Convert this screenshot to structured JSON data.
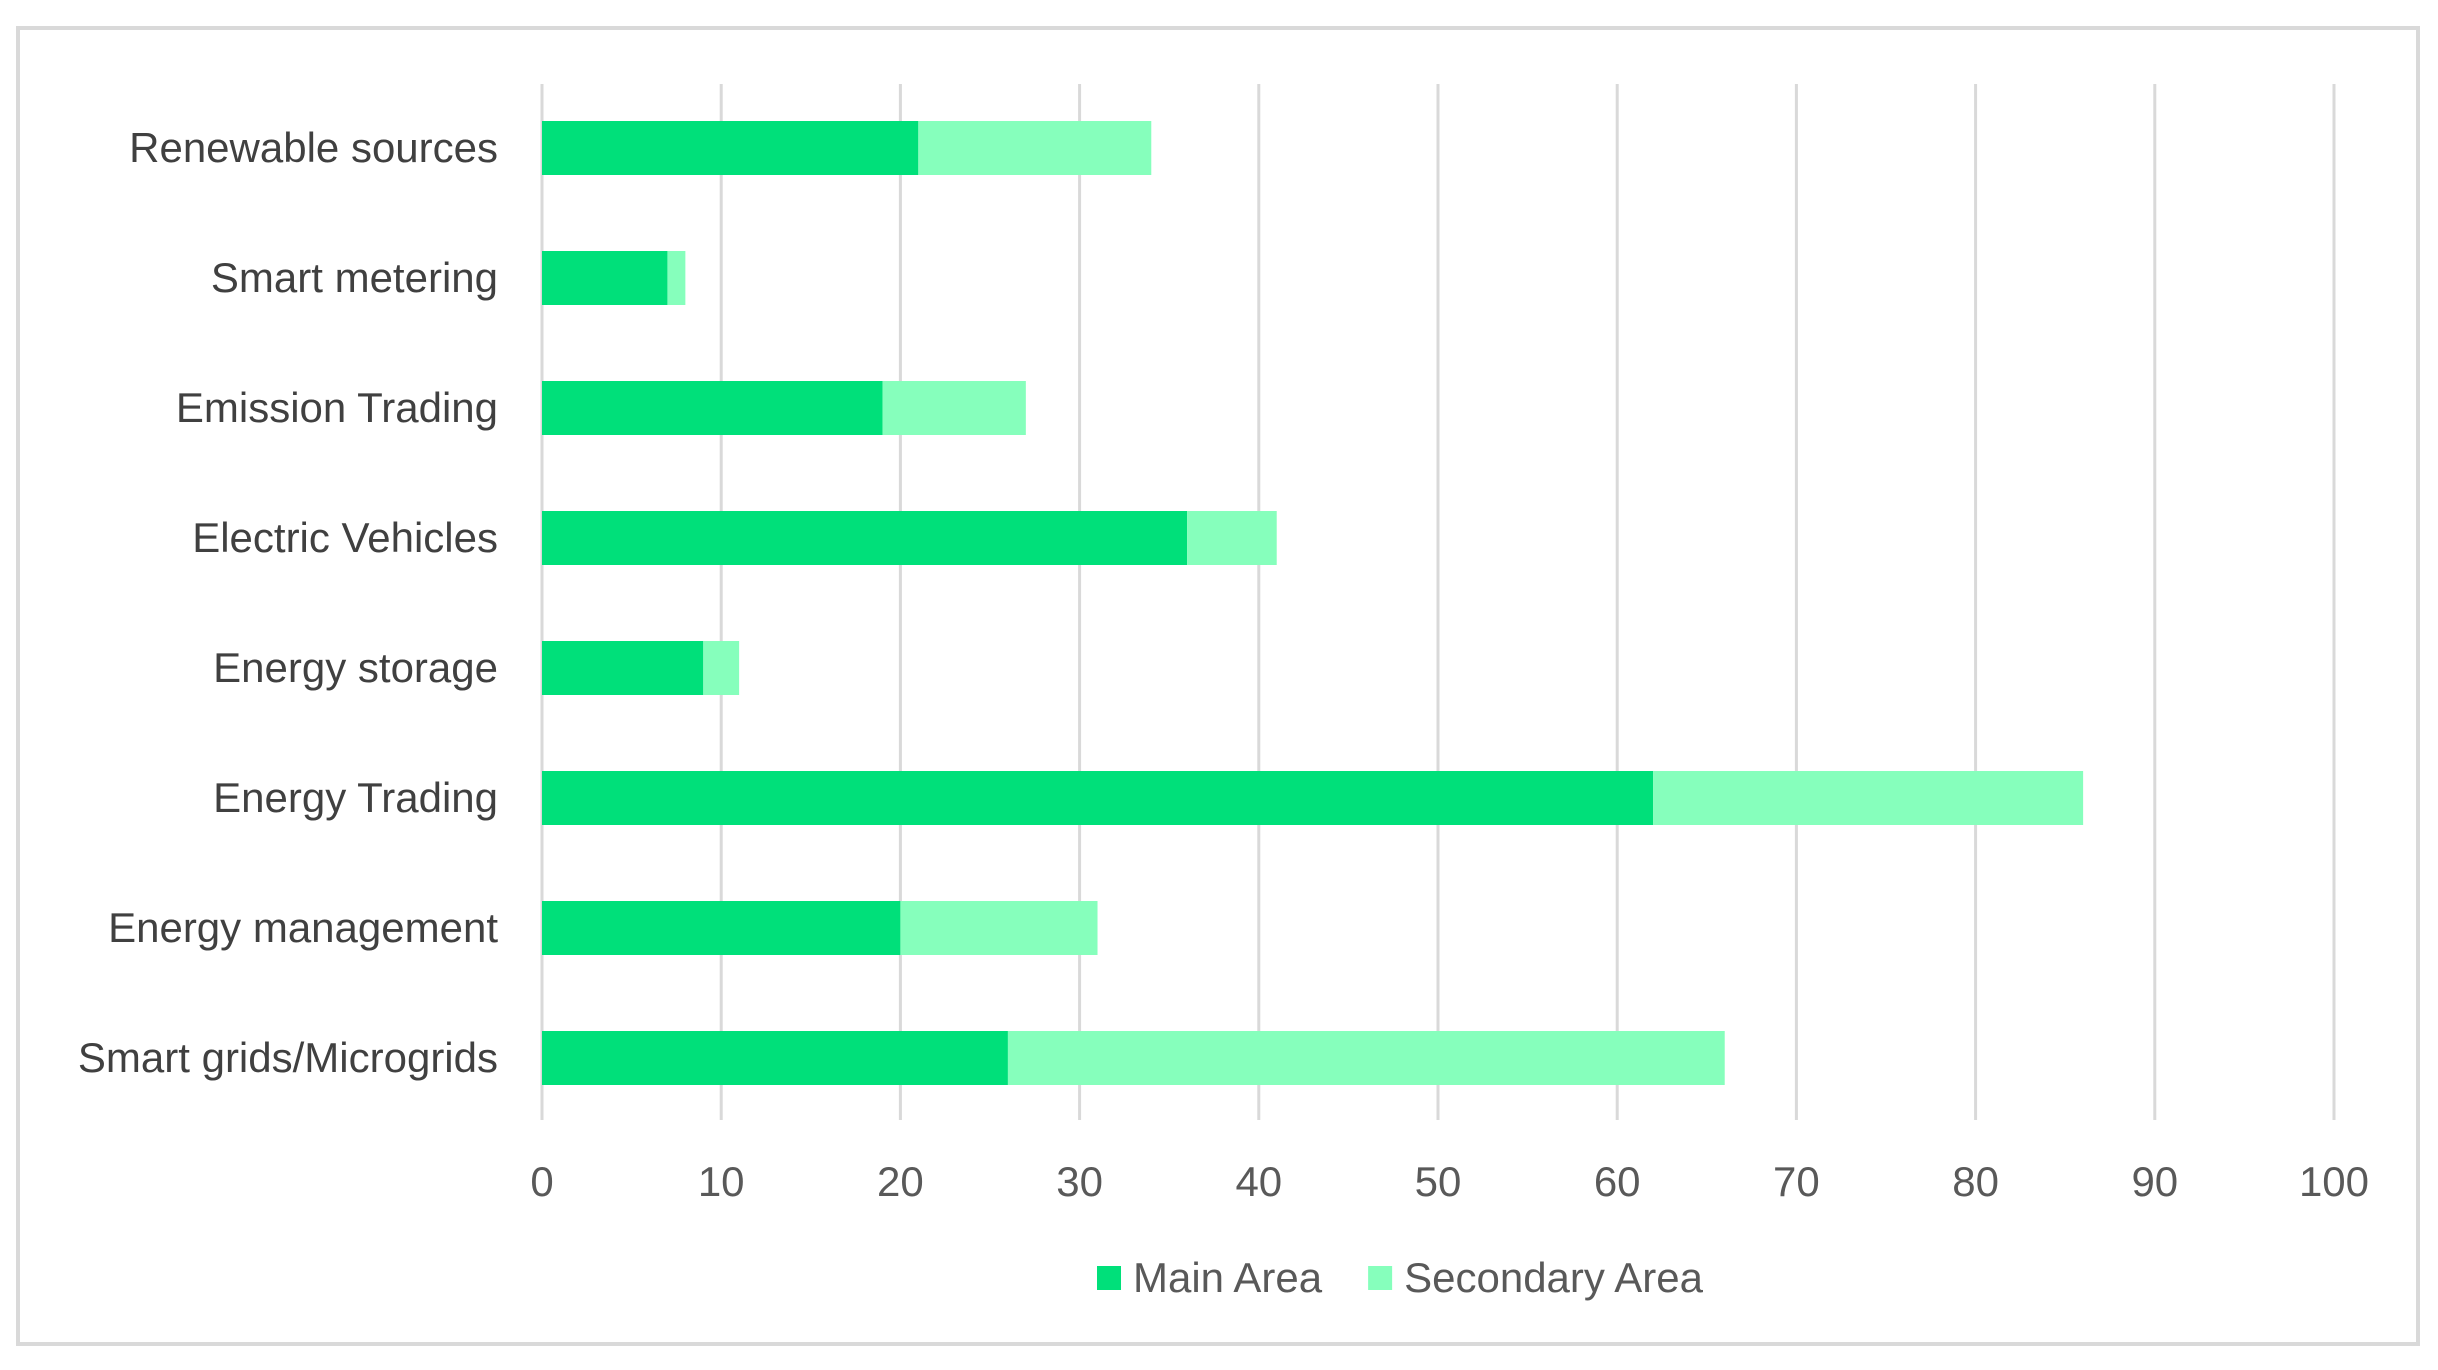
{
  "chart_data": {
    "type": "bar",
    "orientation": "horizontal",
    "stacked": true,
    "categories": [
      "Renewable sources",
      "Smart metering",
      "Emission Trading",
      "Electric Vehicles",
      "Energy storage",
      "Energy Trading",
      "Energy management",
      "Smart grids/Microgrids"
    ],
    "series": [
      {
        "name": "Main Area",
        "color": "#00e07a",
        "values": [
          21,
          7,
          19,
          36,
          9,
          62,
          20,
          26
        ]
      },
      {
        "name": "Secondary Area",
        "color": "#86ffbc",
        "values": [
          13,
          1,
          8,
          5,
          2,
          24,
          11,
          40
        ]
      }
    ],
    "xlim": [
      0,
      100
    ],
    "xticks": [
      0,
      10,
      20,
      30,
      40,
      50,
      60,
      70,
      80,
      90,
      100
    ],
    "title": "",
    "xlabel": "",
    "ylabel": "",
    "grid": "vertical",
    "gridColor": "#d9d9d9",
    "legend": "bottom"
  }
}
